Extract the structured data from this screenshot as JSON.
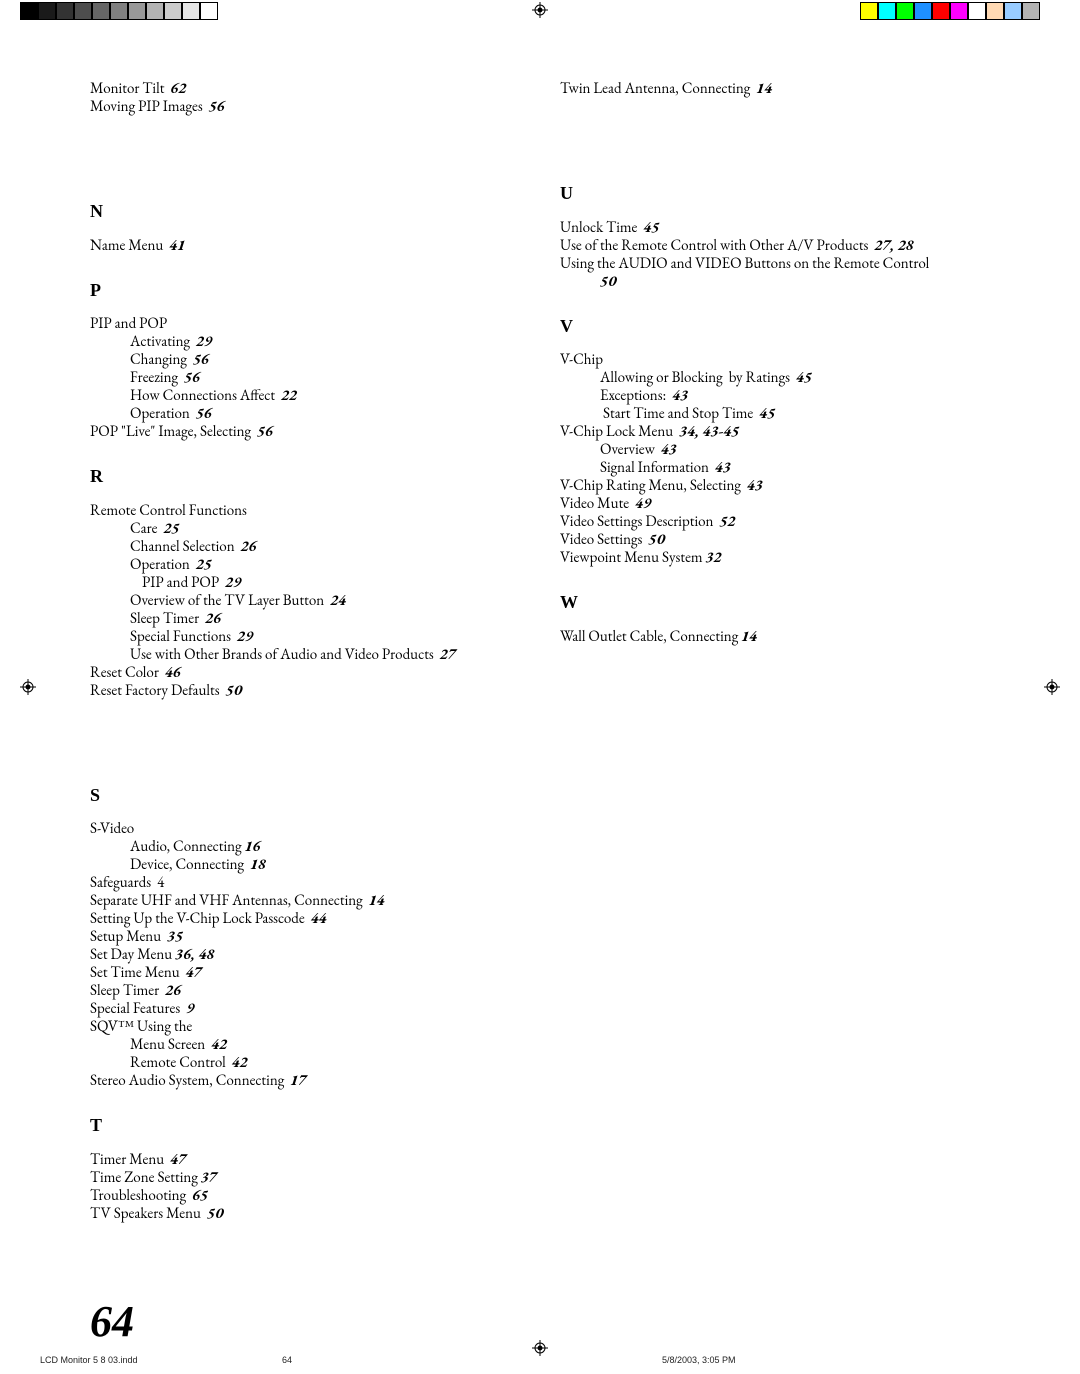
{
  "colors": {
    "reg_greys": [
      "#000000",
      "#1a1a1a",
      "#333333",
      "#4d4d4d",
      "#666666",
      "#808080",
      "#999999",
      "#b3b3b3",
      "#cccccc",
      "#e6e6e6",
      "#ffffff"
    ],
    "reg_colors": [
      "#ffff00",
      "#00ffff",
      "#00ff00",
      "#1e90ff",
      "#ff0000",
      "#ff00ff",
      "#ffffff",
      "#ffd9b3",
      "#99ccff",
      "#b3b3b3"
    ]
  },
  "left": [
    {
      "type": "entry",
      "text": "Monitor Tilt  ",
      "page": "62"
    },
    {
      "type": "entry",
      "text": "Moving PIP Images  ",
      "page": "56"
    },
    {
      "type": "gap"
    },
    {
      "type": "head",
      "text": "N"
    },
    {
      "type": "entry",
      "text": "Name Menu  ",
      "page": "41"
    },
    {
      "type": "head",
      "text": "P"
    },
    {
      "type": "entry",
      "text": "PIP and POP"
    },
    {
      "type": "sub",
      "text": "Activating  ",
      "page": "29"
    },
    {
      "type": "sub",
      "text": "Changing  ",
      "page": "56"
    },
    {
      "type": "sub",
      "text": "Freezing  ",
      "page": "56"
    },
    {
      "type": "sub",
      "text": "How Connections Affect  ",
      "page": "22"
    },
    {
      "type": "sub",
      "text": "Operation  ",
      "page": "56"
    },
    {
      "type": "entry",
      "text": "POP \"Live\" Image, Selecting  ",
      "page": "56"
    },
    {
      "type": "head",
      "text": "R"
    },
    {
      "type": "entry",
      "text": "Remote Control Functions"
    },
    {
      "type": "sub",
      "text": "Care  ",
      "page": "25"
    },
    {
      "type": "sub",
      "text": "Channel Selection  ",
      "page": "26"
    },
    {
      "type": "sub",
      "text": "Operation  ",
      "page": "25"
    },
    {
      "type": "sub2",
      "text": "PIP and POP  ",
      "page": "29"
    },
    {
      "type": "sub",
      "text": "Overview of the TV Layer Button  ",
      "page": "24"
    },
    {
      "type": "sub",
      "text": "Sleep Timer  ",
      "page": "26"
    },
    {
      "type": "sub",
      "text": "Special Functions  ",
      "page": "29"
    },
    {
      "type": "sub",
      "text": "Use with Other Brands of Audio and Video Products  ",
      "page": "27"
    },
    {
      "type": "entry",
      "text": "Reset Color  ",
      "page": "46"
    },
    {
      "type": "entry",
      "text": "Reset Factory Defaults  ",
      "page": "50"
    },
    {
      "type": "gap"
    },
    {
      "type": "head",
      "text": "S"
    },
    {
      "type": "entry",
      "text": "S-Video"
    },
    {
      "type": "sub",
      "text": "Audio, Connecting ",
      "page": "16"
    },
    {
      "type": "sub",
      "text": "Device, Connecting  ",
      "page": "18"
    },
    {
      "type": "entry",
      "text": "Safeguards  4"
    },
    {
      "type": "entry",
      "text": "Separate UHF and VHF Antennas, Connecting  ",
      "page": "14"
    },
    {
      "type": "entry",
      "text": "Setting Up the V-Chip Lock Passcode  ",
      "page": "44"
    },
    {
      "type": "entry",
      "text": "Setup Menu  ",
      "page": "35"
    },
    {
      "type": "entry",
      "text": "Set Day Menu ",
      "page": "36, 48"
    },
    {
      "type": "entry",
      "text": "Set Time Menu  ",
      "page": "47"
    },
    {
      "type": "entry",
      "text": "Sleep Timer  ",
      "page": "26"
    },
    {
      "type": "entry",
      "text": "Special Features  ",
      "page": "9"
    },
    {
      "type": "entry",
      "text": "SQV™ Using the"
    },
    {
      "type": "sub",
      "text": "Menu Screen  ",
      "page": "42"
    },
    {
      "type": "sub",
      "text": "Remote Control  ",
      "page": "42"
    },
    {
      "type": "entry",
      "text": "Stereo Audio System, Connecting  ",
      "page": "17"
    },
    {
      "type": "head",
      "text": "T"
    },
    {
      "type": "entry",
      "text": "Timer Menu  ",
      "page": "47"
    },
    {
      "type": "entry",
      "text": "Time Zone Setting ",
      "page": "37"
    },
    {
      "type": "entry",
      "text": "Troubleshooting  ",
      "page": "65"
    },
    {
      "type": "entry",
      "text": "TV Speakers Menu  ",
      "page": "50"
    }
  ],
  "right": [
    {
      "type": "entry",
      "text": "Twin Lead Antenna, Connecting  ",
      "page": "14"
    },
    {
      "type": "gap"
    },
    {
      "type": "head",
      "text": "U"
    },
    {
      "type": "entry",
      "text": "Unlock Time  ",
      "page": "45"
    },
    {
      "type": "entry",
      "text": "Use of the Remote Control with Other A/V Products  ",
      "page": "27, 28"
    },
    {
      "type": "entry",
      "text": "Using the AUDIO and VIDEO Buttons on the Remote Control  "
    },
    {
      "type": "sub",
      "text": "",
      "page": "50"
    },
    {
      "type": "head",
      "text": "V"
    },
    {
      "type": "entry",
      "text": "V-Chip"
    },
    {
      "type": "sub",
      "text": "Allowing or Blocking  by Ratings  ",
      "page": "45"
    },
    {
      "type": "sub",
      "text": "Exceptions:  ",
      "page": "43"
    },
    {
      "type": "sub",
      "text": " Start Time and Stop Time  ",
      "page": "45"
    },
    {
      "type": "entry",
      "text": "V-Chip Lock Menu  ",
      "page": "34, 43-45"
    },
    {
      "type": "sub",
      "text": "Overview  ",
      "page": "43"
    },
    {
      "type": "sub",
      "text": "Signal Information  ",
      "page": "43"
    },
    {
      "type": "entry",
      "text": "V-Chip Rating Menu, Selecting  ",
      "page": "43"
    },
    {
      "type": "entry",
      "text": "Video Mute  ",
      "page": "49"
    },
    {
      "type": "entry",
      "text": "Video Settings Description  ",
      "page": "52"
    },
    {
      "type": "entry",
      "text": "Video Settings  ",
      "page": "50"
    },
    {
      "type": "entry",
      "text": "Viewpoint Menu System ",
      "page": "32"
    },
    {
      "type": "head",
      "text": "W"
    },
    {
      "type": "entry",
      "text": "Wall Outlet Cable, Connecting ",
      "page": "14"
    }
  ],
  "page_number": "64",
  "footer": {
    "file": "LCD Monitor 5 8 03.indd",
    "mid": "64",
    "date": "5/8/2003, 3:05 PM"
  }
}
